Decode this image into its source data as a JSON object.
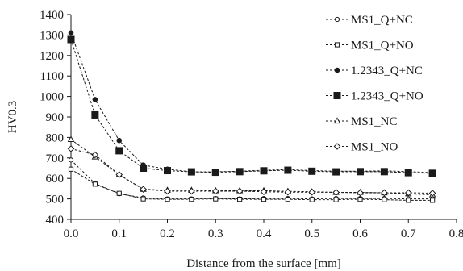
{
  "chart_data": {
    "type": "line",
    "xlabel": "Distance from the surface [mm]",
    "ylabel": "HV0.3",
    "xlim": [
      0.0,
      0.8
    ],
    "ylim": [
      400,
      1400
    ],
    "xticks": [
      "0.0",
      "0.1",
      "0.2",
      "0.3",
      "0.4",
      "0.5",
      "0.6",
      "0.7",
      "0.8"
    ],
    "yticks": [
      "400",
      "500",
      "600",
      "700",
      "800",
      "900",
      "1000",
      "1100",
      "1200",
      "1300",
      "1400"
    ],
    "grid": false,
    "legend_position": "right",
    "x": [
      0.0,
      0.05,
      0.1,
      0.15,
      0.2,
      0.25,
      0.3,
      0.35,
      0.4,
      0.45,
      0.5,
      0.55,
      0.6,
      0.65,
      0.7,
      0.75
    ],
    "series": [
      {
        "name": "MS1_Q+NC",
        "marker": "circle-open",
        "values": [
          690,
          575,
          525,
          505,
          500,
          500,
          502,
          500,
          502,
          502,
          500,
          502,
          502,
          502,
          500,
          500
        ]
      },
      {
        "name": "MS1_Q+NO",
        "marker": "square-open",
        "values": [
          645,
          572,
          527,
          500,
          498,
          498,
          500,
          498,
          498,
          498,
          496,
          496,
          498,
          496,
          493,
          493
        ]
      },
      {
        "name": "1.2343_Q+NC",
        "marker": "circle-filled",
        "values": [
          1310,
          985,
          785,
          665,
          645,
          632,
          632,
          635,
          640,
          643,
          638,
          635,
          635,
          637,
          633,
          628
        ]
      },
      {
        "name": "1.2343_Q+NO",
        "marker": "square-filled",
        "values": [
          1278,
          910,
          735,
          650,
          638,
          632,
          630,
          633,
          637,
          640,
          635,
          632,
          633,
          633,
          628,
          625
        ]
      },
      {
        "name": "MS1_NC",
        "marker": "triangle-open",
        "values": [
          790,
          705,
          618,
          547,
          542,
          542,
          540,
          540,
          540,
          537,
          535,
          532,
          532,
          530,
          525,
          520
        ]
      },
      {
        "name": "MS1_NO",
        "marker": "diamond-open",
        "values": [
          745,
          715,
          618,
          547,
          538,
          538,
          538,
          538,
          535,
          533,
          533,
          532,
          530,
          530,
          530,
          528
        ]
      }
    ],
    "colors": {
      "axis": "#1a1a1a",
      "series": "#1a1a1a",
      "background": "#ffffff"
    }
  }
}
